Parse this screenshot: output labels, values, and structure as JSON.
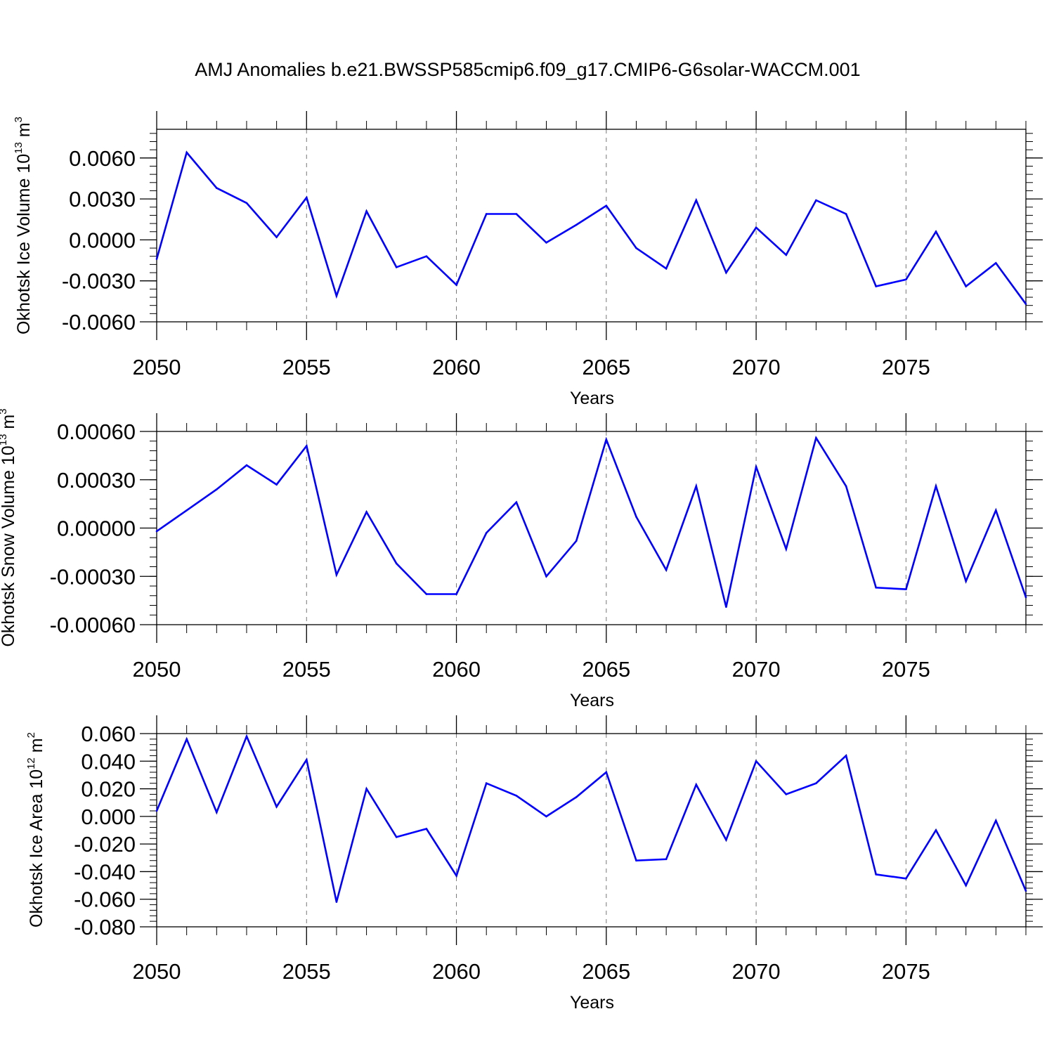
{
  "title": "AMJ Anomalies b.e21.BWSSP585cmip6.f09_g17.CMIP6-G6solar-WACCM.001",
  "line_color": "#0000ff",
  "chart_data": [
    {
      "type": "line",
      "title": "AMJ Anomalies b.e21.BWSSP585cmip6.f09_g17.CMIP6-G6solar-WACCM.001",
      "xlabel": "Years",
      "ylabel": {
        "text": "Okhotsk Ice Volume 10",
        "exp": "13",
        "unit": " m",
        "unit_exp": "3"
      },
      "xlim": [
        2050,
        2079
      ],
      "ylim": [
        -0.006,
        0.0081
      ],
      "x_ticks": [
        2050,
        2055,
        2060,
        2065,
        2070,
        2075
      ],
      "x_tick_labels": [
        "2050",
        "2055",
        "2060",
        "2065",
        "2070",
        "2075"
      ],
      "y_ticks": [
        -0.006,
        -0.003,
        0.0,
        0.003,
        0.006
      ],
      "y_tick_labels": [
        "-0.0060",
        "-0.0030",
        "0.0000",
        "0.0030",
        "0.0060"
      ],
      "grid": "dashed vertical at major x ticks",
      "x": [
        2050,
        2051,
        2052,
        2053,
        2054,
        2055,
        2056,
        2057,
        2058,
        2059,
        2060,
        2061,
        2062,
        2063,
        2064,
        2065,
        2066,
        2067,
        2068,
        2069,
        2070,
        2071,
        2072,
        2073,
        2074,
        2075,
        2076,
        2077,
        2078,
        2079
      ],
      "values": [
        -0.0014,
        0.0064,
        0.0038,
        0.0027,
        0.0002,
        0.0031,
        -0.0041,
        0.0021,
        -0.002,
        -0.0012,
        -0.0033,
        0.0019,
        0.0019,
        -0.0002,
        0.0011,
        0.0025,
        -0.0006,
        -0.0021,
        0.0029,
        -0.0024,
        0.0009,
        -0.0011,
        0.0029,
        0.0019,
        -0.0034,
        -0.0029,
        0.0006,
        -0.0034,
        -0.0017,
        -0.0047
      ]
    },
    {
      "type": "line",
      "xlabel": "Years",
      "ylabel": {
        "text": "Okhotsk Snow Volume 10",
        "exp": "13",
        "unit": " m",
        "unit_exp": "3"
      },
      "xlim": [
        2050,
        2079
      ],
      "ylim": [
        -0.0006,
        0.0006
      ],
      "x_ticks": [
        2050,
        2055,
        2060,
        2065,
        2070,
        2075
      ],
      "x_tick_labels": [
        "2050",
        "2055",
        "2060",
        "2065",
        "2070",
        "2075"
      ],
      "y_ticks": [
        -0.0006,
        -0.0003,
        0.0,
        0.0003,
        0.0006
      ],
      "y_tick_labels": [
        "-0.00060",
        "-0.00030",
        "0.00000",
        "0.00030",
        "0.00060"
      ],
      "grid": "dashed vertical at major x ticks",
      "x": [
        2050,
        2051,
        2052,
        2053,
        2054,
        2055,
        2056,
        2057,
        2058,
        2059,
        2060,
        2061,
        2062,
        2063,
        2064,
        2065,
        2066,
        2067,
        2068,
        2069,
        2070,
        2071,
        2072,
        2073,
        2074,
        2075,
        2076,
        2077,
        2078,
        2079
      ],
      "values": [
        -2e-05,
        0.00011,
        0.00024,
        0.00039,
        0.00027,
        0.00051,
        -0.00029,
        0.0001,
        -0.00022,
        -0.00041,
        -0.00041,
        -3e-05,
        0.00016,
        -0.0003,
        -8e-05,
        0.00055,
        7e-05,
        -0.00026,
        0.00026,
        -0.00049,
        0.00038,
        -0.00013,
        0.00056,
        0.00026,
        -0.00037,
        -0.00038,
        0.00026,
        -0.00033,
        0.00011,
        -0.00043
      ]
    },
    {
      "type": "line",
      "xlabel": "Years",
      "ylabel": {
        "text": "Okhotsk Ice Area 10",
        "exp": "12",
        "unit": " m",
        "unit_exp": "2"
      },
      "xlim": [
        2050,
        2079
      ],
      "ylim": [
        -0.08,
        0.06
      ],
      "x_ticks": [
        2050,
        2055,
        2060,
        2065,
        2070,
        2075
      ],
      "x_tick_labels": [
        "2050",
        "2055",
        "2060",
        "2065",
        "2070",
        "2075"
      ],
      "y_ticks": [
        -0.08,
        -0.06,
        -0.04,
        -0.02,
        0.0,
        0.02,
        0.04,
        0.06
      ],
      "y_tick_labels": [
        "-0.080",
        "-0.060",
        "-0.040",
        "-0.020",
        "0.000",
        "0.020",
        "0.040",
        "0.060"
      ],
      "grid": "dashed vertical at major x ticks",
      "x": [
        2050,
        2051,
        2052,
        2053,
        2054,
        2055,
        2056,
        2057,
        2058,
        2059,
        2060,
        2061,
        2062,
        2063,
        2064,
        2065,
        2066,
        2067,
        2068,
        2069,
        2070,
        2071,
        2072,
        2073,
        2074,
        2075,
        2076,
        2077,
        2078,
        2079
      ],
      "values": [
        0.004,
        0.056,
        0.003,
        0.058,
        0.007,
        0.041,
        -0.062,
        0.02,
        -0.015,
        -0.009,
        -0.043,
        0.024,
        0.015,
        0.0,
        0.014,
        0.032,
        -0.032,
        -0.031,
        0.023,
        -0.017,
        0.04,
        0.016,
        0.024,
        0.044,
        -0.042,
        -0.045,
        -0.01,
        -0.05,
        -0.003,
        -0.054
      ]
    }
  ]
}
